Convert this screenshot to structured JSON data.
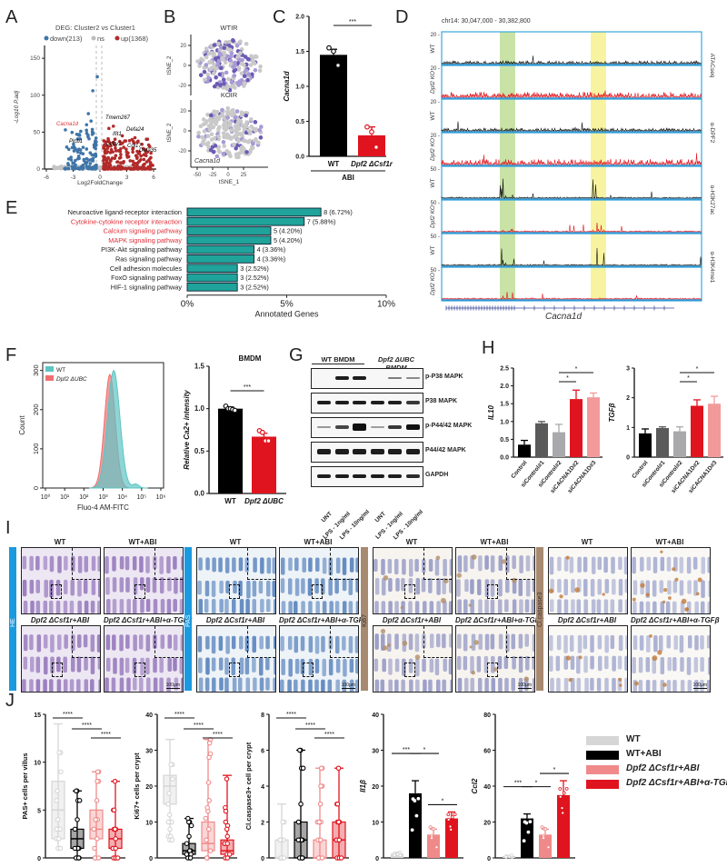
{
  "panel_labels": [
    "A",
    "B",
    "C",
    "D",
    "E",
    "F",
    "G",
    "H",
    "I",
    "J"
  ],
  "panelA": {
    "title": "DEG: Cluster2 vs Cluster1",
    "legend": [
      {
        "label": "down(213)",
        "color": "#3f75a8"
      },
      {
        "label": "ns",
        "color": "#bdbdbd"
      },
      {
        "label": "up(1368)",
        "color": "#b22a2a"
      }
    ],
    "xlabel": "Log2FoldChange",
    "ylabel": "-Log10 P.adj",
    "xticks": [
      "-6",
      "-3",
      "0",
      "3",
      "6"
    ],
    "yticks": [
      "0",
      "50",
      "100",
      "150"
    ],
    "genes": [
      {
        "name": "Cacna1d",
        "color": "#e0303a"
      },
      {
        "name": "Plcb1",
        "color": "#222"
      },
      {
        "name": "Tmem267",
        "color": "#222"
      },
      {
        "name": "Defa24",
        "color": "#222"
      },
      {
        "name": "Ifit1",
        "color": "#222"
      },
      {
        "name": "Lefty1",
        "color": "#222"
      },
      {
        "name": "Col17",
        "color": "#222"
      },
      {
        "name": "Defa35",
        "color": "#222"
      }
    ]
  },
  "panelB": {
    "plots": [
      {
        "title": "WTIR"
      },
      {
        "title": "KOIR"
      }
    ],
    "gene": "Cacna1d",
    "xlabel": "tSNE_1",
    "ylabel": "tSNE_2",
    "xticks": [
      "-50",
      "-25",
      "0",
      "25"
    ],
    "yticks": [
      "20",
      "0",
      "-20"
    ]
  },
  "chart_data": [
    {
      "id": "C",
      "type": "bar",
      "ylabel": "Cacna1d",
      "categories": [
        "WT",
        "Dpf2 ΔCsf1r"
      ],
      "values": [
        1.45,
        0.3
      ],
      "errors": [
        0.08,
        0.12
      ],
      "points": [
        [
          1.55,
          1.5,
          1.3
        ],
        [
          0.42,
          0.35,
          0.13
        ]
      ],
      "colors": [
        "#000000",
        "#e0141e"
      ],
      "ylim": [
        0,
        2.0
      ],
      "yticks": [
        "0.0",
        "0.5",
        "1.0",
        "1.5",
        "2.0"
      ],
      "group_label": "ABI",
      "significance": "***"
    },
    {
      "id": "E",
      "type": "bar",
      "orientation": "horizontal",
      "xlabel": "Annotated Genes",
      "xticks": [
        "0%",
        "5%",
        "10%"
      ],
      "xlim": [
        0,
        10
      ],
      "categories": [
        "Neuroactive ligand-receptor interaction",
        "Cytokine-cytokine receptor interaction",
        "Calcium signaling pathway",
        "MAPK signaling pathway",
        "PI3K-Akt signaling pathway",
        "Ras signaling pathway",
        "Cell adhesion molecules",
        "FoxO signaling pathway",
        "HIF-1 signaling pathway"
      ],
      "highlighted": [
        false,
        true,
        true,
        true,
        false,
        false,
        false,
        false,
        false
      ],
      "values": [
        6.72,
        5.88,
        4.2,
        4.2,
        3.36,
        3.36,
        2.52,
        2.52,
        2.52
      ],
      "labels": [
        "8 (6.72%)",
        "7 (5.88%)",
        "5 (4.20%)",
        "5 (4.20%)",
        "4 (3.36%)",
        "4 (3.36%)",
        "3 (2.52%)",
        "3 (2.52%)",
        "3 (2.52%)"
      ],
      "bar_color": "#1fa39a"
    },
    {
      "id": "F-histogram",
      "type": "area",
      "xlabel": "Fluo-4 AM-FITC",
      "ylabel": "Count",
      "xticks": [
        "10⁰",
        "10¹",
        "10²",
        "10³",
        "10⁴",
        "10⁵",
        "10⁶"
      ],
      "yticks": [
        "0",
        "100",
        "200",
        "300"
      ],
      "ylim": [
        0,
        320
      ],
      "series": [
        {
          "name": "WT",
          "color": "#5ec4c4",
          "peak_log10": 3.55,
          "peak_count": 300
        },
        {
          "name": "Dpf2 ΔUBC",
          "color": "#f07070",
          "peak_log10": 3.35,
          "peak_count": 290
        }
      ]
    },
    {
      "id": "F-bar",
      "type": "bar",
      "title": "BMDM",
      "ylabel": "Relative Ca2+ intensity",
      "categories": [
        "WT",
        "Dpf2 ΔUBC"
      ],
      "values": [
        1.0,
        0.67
      ],
      "errors": [
        0.02,
        0.04
      ],
      "points": [
        [
          1.03,
          1.0,
          1.0,
          0.99,
          0.98
        ],
        [
          0.74,
          0.72,
          0.62,
          0.62
        ]
      ],
      "colors": [
        "#000000",
        "#e0141e"
      ],
      "ylim": [
        0,
        1.5
      ],
      "yticks": [
        "0.0",
        "0.5",
        "1.0",
        "1.5"
      ],
      "significance": "***"
    },
    {
      "id": "H-IL10",
      "type": "bar",
      "ylabel": "IL10",
      "categories": [
        "Control",
        "siControl#1",
        "siControl#2",
        "siCACNA1D#2",
        "siCACNA1D#3"
      ],
      "values": [
        0.35,
        0.95,
        0.7,
        1.63,
        1.68
      ],
      "errors": [
        0.12,
        0.05,
        0.22,
        0.25,
        0.12
      ],
      "colors": [
        "#000000",
        "#5a5a5a",
        "#a9a9ab",
        "#e0141e",
        "#f29a9a"
      ],
      "ylim": [
        0,
        2.5
      ],
      "yticks": [
        "0.0",
        "0.5",
        "1.0",
        "1.5",
        "2.0",
        "2.5"
      ],
      "significance": [
        {
          "from": 2,
          "to": 3,
          "label": "*"
        },
        {
          "from": 2,
          "to": 4,
          "label": "*"
        }
      ]
    },
    {
      "id": "H-TGFb",
      "type": "bar",
      "ylabel": "TGFβ",
      "categories": [
        "Control",
        "siControl#1",
        "siControl#2",
        "siCACNA1D#2",
        "siCACNA1D#3"
      ],
      "values": [
        0.8,
        0.98,
        0.87,
        1.73,
        1.8
      ],
      "errors": [
        0.15,
        0.04,
        0.15,
        0.2,
        0.25
      ],
      "colors": [
        "#000000",
        "#5a5a5a",
        "#a9a9ab",
        "#e0141e",
        "#f29a9a"
      ],
      "ylim": [
        0,
        3
      ],
      "yticks": [
        "0",
        "1",
        "2",
        "3"
      ],
      "significance": [
        {
          "from": 2,
          "to": 3,
          "label": "*"
        },
        {
          "from": 2,
          "to": 4,
          "label": "*"
        }
      ]
    },
    {
      "id": "J-PAS",
      "type": "box",
      "ylabel": "PAS+ cells per villus",
      "ylim": [
        0,
        15
      ],
      "yticks": [
        "0",
        "5",
        "10",
        "15"
      ],
      "groups": [
        {
          "name": "WT",
          "min": 1,
          "q1": 2,
          "median": 5,
          "q3": 8,
          "max": 14
        },
        {
          "name": "WT+ABI",
          "min": 0,
          "q1": 1,
          "median": 2,
          "q3": 3,
          "max": 7
        },
        {
          "name": "Dpf2 ΔCsf1r+ABI",
          "min": 0,
          "q1": 2,
          "median": 3,
          "q3": 5,
          "max": 9
        },
        {
          "name": "Dpf2 ΔCsf1r+ABI+α-TGFβ",
          "min": 0,
          "q1": 1,
          "median": 2,
          "q3": 3,
          "max": 8
        }
      ],
      "significance": [
        {
          "from": 0,
          "to": 1,
          "label": "****"
        },
        {
          "from": 1,
          "to": 2,
          "label": "****"
        },
        {
          "from": 2,
          "to": 3,
          "label": "****"
        }
      ]
    },
    {
      "id": "J-Ki67",
      "type": "box",
      "ylabel": "Ki67+ cells per crypt",
      "ylim": [
        0,
        40
      ],
      "yticks": [
        "0",
        "10",
        "20",
        "30",
        "40"
      ],
      "groups": [
        {
          "name": "WT",
          "min": 5,
          "q1": 15,
          "median": 20,
          "q3": 23,
          "max": 33
        },
        {
          "name": "WT+ABI",
          "min": 0,
          "q1": 1,
          "median": 2,
          "q3": 4,
          "max": 11
        },
        {
          "name": "Dpf2 ΔCsf1r+ABI",
          "min": 0,
          "q1": 2,
          "median": 4,
          "q3": 10,
          "max": 33
        },
        {
          "name": "Dpf2 ΔCsf1r+ABI+α-TGFβ",
          "min": 0,
          "q1": 1,
          "median": 2,
          "q3": 5,
          "max": 23
        }
      ],
      "significance": [
        {
          "from": 0,
          "to": 1,
          "label": "****"
        },
        {
          "from": 1,
          "to": 2,
          "label": "****"
        },
        {
          "from": 2,
          "to": 3,
          "label": "****"
        }
      ]
    },
    {
      "id": "J-Caspase3",
      "type": "box",
      "ylabel": "Cl.caspase3+ cell per crypt",
      "ylim": [
        0,
        8
      ],
      "yticks": [
        "0",
        "2",
        "4",
        "6",
        "8"
      ],
      "groups": [
        {
          "name": "WT",
          "min": 0,
          "q1": 0,
          "median": 0,
          "q3": 1,
          "max": 3
        },
        {
          "name": "WT+ABI",
          "min": 0,
          "q1": 0,
          "median": 1,
          "q3": 2,
          "max": 6
        },
        {
          "name": "Dpf2 ΔCsf1r+ABI",
          "min": 0,
          "q1": 0,
          "median": 0,
          "q3": 1,
          "max": 5
        },
        {
          "name": "Dpf2 ΔCsf1r+ABI+α-TGFβ",
          "min": 0,
          "q1": 0,
          "median": 1,
          "q3": 2,
          "max": 5
        }
      ],
      "significance": [
        {
          "from": 0,
          "to": 1,
          "label": "****"
        },
        {
          "from": 1,
          "to": 2,
          "label": "****"
        },
        {
          "from": 2,
          "to": 3,
          "label": "****"
        }
      ]
    },
    {
      "id": "J-Il1b",
      "type": "bar",
      "ylabel": "Il1β",
      "ylim": [
        0,
        40
      ],
      "yticks": [
        "0",
        "10",
        "20",
        "30",
        "40"
      ],
      "categories": [
        "WT",
        "WT+ABI",
        "Dpf2 ΔCsf1r+ABI",
        "Dpf2 ΔCsf1r+ABI+α-TGFβ"
      ],
      "values": [
        1.2,
        18,
        6.5,
        11
      ],
      "errors": [
        0.4,
        3.5,
        1.5,
        1.8
      ],
      "colors": [
        "#d6d6d6",
        "#000000",
        "#f08a8a",
        "#e0141e"
      ],
      "significance": [
        {
          "from": 0,
          "to": 1,
          "label": "***"
        },
        {
          "from": 1,
          "to": 2,
          "label": "*"
        },
        {
          "from": 2,
          "to": 3,
          "label": "*"
        }
      ]
    },
    {
      "id": "J-Ccl2",
      "type": "bar",
      "ylabel": "Ccl2",
      "ylim": [
        0,
        80
      ],
      "yticks": [
        "0",
        "20",
        "40",
        "60",
        "80"
      ],
      "categories": [
        "WT",
        "WT+ABI",
        "Dpf2 ΔCsf1r+ABI",
        "Dpf2 ΔCsf1r+ABI+α-TGFβ"
      ],
      "values": [
        1,
        22,
        13,
        35
      ],
      "errors": [
        0.5,
        2.5,
        3,
        8
      ],
      "colors": [
        "#d6d6d6",
        "#000000",
        "#f08a8a",
        "#e0141e"
      ],
      "significance": [
        {
          "from": 0,
          "to": 1,
          "label": "***"
        },
        {
          "from": 1,
          "to": 2,
          "label": "*"
        },
        {
          "from": 2,
          "to": 3,
          "label": "*"
        }
      ]
    }
  ],
  "panelD": {
    "region": "chr14: 30,047,000 - 30,382,800",
    "gene": "Cacna1d",
    "tracks": [
      {
        "sample": "WT",
        "scale": "20",
        "color": "#111111"
      },
      {
        "sample": "Dpf2 KO",
        "scale": "20",
        "color": "#e0141e"
      },
      {
        "sample": "WT",
        "scale": "20",
        "color": "#111111"
      },
      {
        "sample": "Dpf2 KO",
        "scale": "20",
        "color": "#e0141e"
      },
      {
        "sample": "WT",
        "scale": "50",
        "color": "#111111"
      },
      {
        "sample": "Dpf2 KO",
        "scale": "50",
        "color": "#e0141e"
      },
      {
        "sample": "WT",
        "scale": "50",
        "color": "#111111"
      },
      {
        "sample": "Dpf2 KO",
        "scale": "50",
        "color": "#e0141e"
      }
    ],
    "assays": [
      "ATACseq",
      "α-DPF2",
      "α-H3K27ac",
      "α-H3K4me1"
    ]
  },
  "panelG": {
    "groups": [
      "WT BMDM",
      "Dpf2 ΔUBC BMDM"
    ],
    "bands": [
      "p-P38 MAPK",
      "P38 MAPK",
      "p-P44/42 MAPK",
      "P44/42 MAPK",
      "GAPDH"
    ],
    "lanes": [
      "UNT",
      "LPS - 1ng/ml",
      "LPS - 10ng/ml",
      "UNT",
      "LPS - 1ng/ml",
      "LPS - 10ng/ml"
    ]
  },
  "panelI": {
    "stains": [
      {
        "name": "HE",
        "bar_color": "#1b9ae0"
      },
      {
        "name": "PAS",
        "bar_color": "#1b9ae0"
      },
      {
        "name": "Ki67",
        "bar_color": "#a88a70"
      },
      {
        "name": "Cl.caspase3",
        "bar_color": "#a88a70"
      }
    ],
    "conditions": [
      "WT",
      "WT+ABI",
      "Dpf2 ΔCsf1r+ABI",
      "Dpf2 ΔCsf1r+ABI+α-TGFβ"
    ],
    "scale_bar": "100μm"
  },
  "legendJ": [
    {
      "label": "WT",
      "color": "#d6d6d6"
    },
    {
      "label": "WT+ABI",
      "color": "#000000"
    },
    {
      "label": "Dpf2 ΔCsf1r+ABI",
      "color": "#f08a8a"
    },
    {
      "label": "Dpf2 ΔCsf1r+ABI+α-TGFβ",
      "color": "#e0141e"
    }
  ]
}
